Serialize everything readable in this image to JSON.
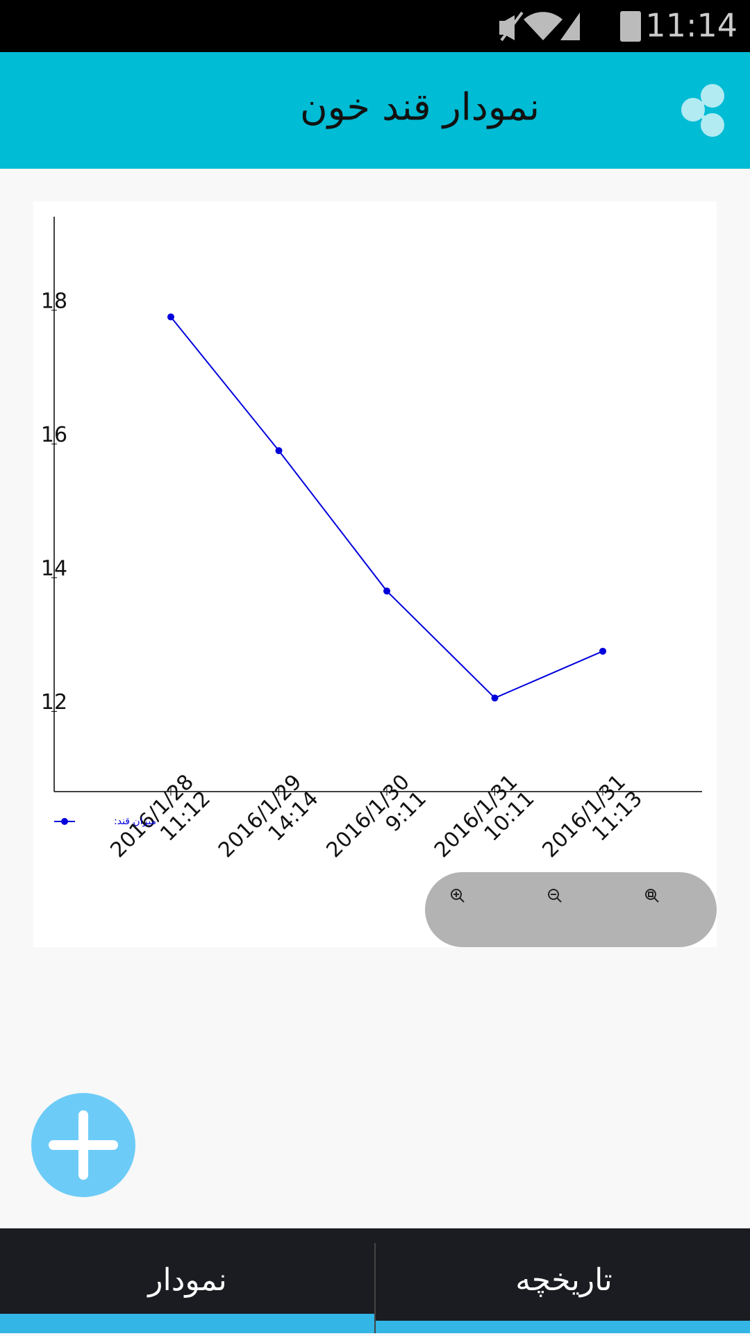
{
  "status_bar": {
    "time": "11:14"
  },
  "app_bar": {
    "title": "نمودار قند خون"
  },
  "chart_data": {
    "type": "line",
    "categories": [
      [
        "2016/1/28",
        "11:12"
      ],
      [
        "2016/1/29",
        "14:14"
      ],
      [
        "2016/1/30",
        "9:11"
      ],
      [
        "2016/1/31",
        "10:11"
      ],
      [
        "2016/1/31",
        "11:13"
      ]
    ],
    "series": [
      {
        "name": "میزان قند:",
        "color": "#0000dd",
        "values": [
          17.9,
          15.9,
          13.8,
          12.2,
          12.9
        ]
      }
    ],
    "ylim": [
      10.8,
      19.4
    ],
    "yticks": [
      12,
      14,
      16,
      18
    ],
    "grid": false,
    "legend": "bottom-left"
  },
  "tabs": [
    "نمودار",
    "تاریخچه"
  ]
}
